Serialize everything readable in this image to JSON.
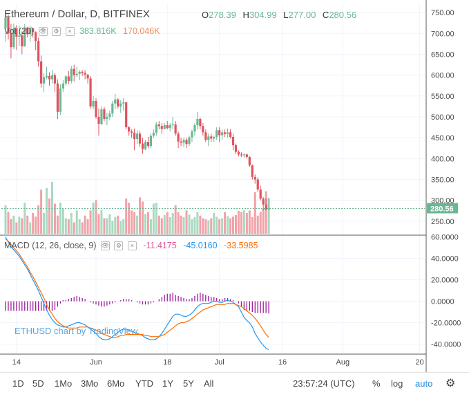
{
  "header": {
    "symbol_title": "Ethereum / Dollar, D, BITFINEX",
    "ohlc": {
      "o_label": "O",
      "o_value": "278.39",
      "h_label": "H",
      "h_value": "304.99",
      "l_label": "L",
      "l_value": "277.00",
      "c_label": "C",
      "c_value": "280.56"
    }
  },
  "volume_legend": {
    "label": "Vol (20)",
    "value1": "383.816K",
    "value2": "170.046K"
  },
  "macd_legend": {
    "label": "MACD (12, 26, close, 9)",
    "hist": "-11.4175",
    "macd": "-45.0160",
    "signal": "-33.5985"
  },
  "watermark": "ETHUSD chart by TradingView",
  "last_price": "280.56",
  "bottom_bar": {
    "ranges": [
      "1D",
      "5D",
      "1Mo",
      "3Mo",
      "6Mo",
      "YTD",
      "1Y",
      "5Y",
      "All"
    ],
    "time": "23:57:24 (UTC)",
    "percent": "%",
    "log": "log",
    "auto": "auto"
  },
  "colors": {
    "up": "#6ab793",
    "down": "#e0535d",
    "vol_up": "#a9d9c1",
    "vol_down": "#f1a2a8",
    "macd": "#2196f3",
    "signal": "#ff6d00",
    "hist": "#9b1a9b"
  },
  "chart_data": [
    {
      "type": "candlestick",
      "title": "Ethereum / Dollar, D, BITFINEX",
      "x_tick_labels": [
        "14",
        "Jun",
        "18",
        "Jul",
        "16",
        "Aug",
        "20"
      ],
      "y_tick_labels": [
        "750.00",
        "700.00",
        "650.00",
        "600.00",
        "550.00",
        "500.00",
        "450.00",
        "400.00",
        "350.00",
        "300.00",
        "250.00"
      ],
      "ylim": [
        220,
        770
      ],
      "candles": [
        [
          714,
          756,
          680,
          738
        ],
        [
          738,
          745,
          685,
          700
        ],
        [
          700,
          722,
          640,
          667
        ],
        [
          667,
          724,
          662,
          712
        ],
        [
          712,
          720,
          660,
          692
        ],
        [
          692,
          718,
          670,
          695
        ],
        [
          695,
          705,
          650,
          669
        ],
        [
          669,
          722,
          668,
          714
        ],
        [
          714,
          716,
          690,
          698
        ],
        [
          698,
          718,
          680,
          712
        ],
        [
          712,
          713,
          690,
          703
        ],
        [
          703,
          705,
          660,
          682
        ],
        [
          682,
          690,
          620,
          633
        ],
        [
          633,
          647,
          570,
          580
        ],
        [
          580,
          605,
          560,
          595
        ],
        [
          595,
          620,
          590,
          598
        ],
        [
          598,
          607,
          575,
          590
        ],
        [
          590,
          612,
          580,
          600
        ],
        [
          600,
          605,
          560,
          580
        ],
        [
          580,
          590,
          495,
          512
        ],
        [
          512,
          578,
          505,
          568
        ],
        [
          568,
          588,
          560,
          580
        ],
        [
          580,
          600,
          575,
          597
        ],
        [
          597,
          610,
          578,
          586
        ],
        [
          586,
          622,
          580,
          615
        ],
        [
          615,
          625,
          585,
          600
        ],
        [
          600,
          620,
          595,
          603
        ],
        [
          603,
          612,
          588,
          608
        ],
        [
          608,
          612,
          598,
          605
        ],
        [
          605,
          612,
          590,
          601
        ],
        [
          601,
          603,
          580,
          592
        ],
        [
          592,
          598,
          520,
          525
        ],
        [
          525,
          550,
          518,
          538
        ],
        [
          538,
          545,
          495,
          500
        ],
        [
          500,
          520,
          455,
          483
        ],
        [
          483,
          525,
          480,
          518
        ],
        [
          518,
          524,
          490,
          495
        ],
        [
          495,
          510,
          480,
          500
        ],
        [
          500,
          515,
          492,
          508
        ],
        [
          508,
          538,
          500,
          532
        ],
        [
          532,
          555,
          518,
          542
        ],
        [
          542,
          545,
          520,
          525
        ],
        [
          525,
          540,
          510,
          532
        ],
        [
          532,
          545,
          515,
          535
        ],
        [
          535,
          535,
          470,
          475
        ],
        [
          475,
          478,
          455,
          465
        ],
        [
          465,
          470,
          450,
          462
        ],
        [
          462,
          472,
          420,
          447
        ],
        [
          447,
          468,
          435,
          460
        ],
        [
          460,
          466,
          428,
          436
        ],
        [
          436,
          450,
          412,
          423
        ],
        [
          423,
          445,
          420,
          440
        ],
        [
          440,
          452,
          425,
          430
        ],
        [
          430,
          460,
          425,
          455
        ],
        [
          455,
          470,
          450,
          462
        ],
        [
          462,
          488,
          455,
          482
        ],
        [
          482,
          490,
          470,
          478
        ],
        [
          478,
          485,
          460,
          471
        ],
        [
          471,
          485,
          470,
          480
        ],
        [
          480,
          490,
          470,
          473
        ],
        [
          473,
          485,
          465,
          480
        ],
        [
          480,
          500,
          470,
          482
        ],
        [
          482,
          490,
          455,
          460
        ],
        [
          460,
          465,
          425,
          441
        ],
        [
          441,
          450,
          430,
          438
        ],
        [
          438,
          450,
          428,
          445
        ],
        [
          445,
          450,
          425,
          435
        ],
        [
          435,
          455,
          430,
          451
        ],
        [
          451,
          470,
          440,
          465
        ],
        [
          465,
          485,
          455,
          480
        ],
        [
          480,
          512,
          470,
          495
        ],
        [
          495,
          498,
          470,
          478
        ],
        [
          478,
          485,
          455,
          463
        ],
        [
          463,
          470,
          440,
          445
        ],
        [
          445,
          460,
          430,
          453
        ],
        [
          453,
          460,
          440,
          448
        ],
        [
          448,
          455,
          440,
          452
        ],
        [
          452,
          475,
          445,
          468
        ],
        [
          468,
          475,
          440,
          456
        ],
        [
          456,
          470,
          445,
          463
        ],
        [
          463,
          470,
          452,
          459
        ],
        [
          459,
          472,
          450,
          463
        ],
        [
          463,
          470,
          448,
          452
        ],
        [
          452,
          460,
          420,
          432
        ],
        [
          432,
          436,
          410,
          416
        ],
        [
          416,
          420,
          405,
          410
        ],
        [
          410,
          415,
          404,
          408
        ],
        [
          408,
          413,
          402,
          410
        ],
        [
          410,
          412,
          400,
          404
        ],
        [
          404,
          406,
          380,
          384
        ],
        [
          384,
          386,
          350,
          356
        ],
        [
          356,
          362,
          340,
          350
        ],
        [
          350,
          355,
          320,
          326
        ],
        [
          326,
          335,
          300,
          304
        ],
        [
          304,
          308,
          276,
          290
        ],
        [
          290,
          305,
          277,
          278
        ],
        [
          278.39,
          304.99,
          277.0,
          280.56
        ]
      ],
      "volumes": [
        55,
        42,
        28,
        35,
        22,
        33,
        30,
        60,
        35,
        22,
        40,
        33,
        55,
        85,
        40,
        88,
        68,
        100,
        58,
        35,
        60,
        48,
        30,
        28,
        40,
        22,
        45,
        28,
        22,
        35,
        28,
        45,
        60,
        65,
        38,
        46,
        30,
        30,
        38,
        25,
        32,
        35,
        25,
        28,
        68,
        60,
        45,
        42,
        35,
        70,
        62,
        38,
        42,
        28,
        58,
        60,
        35,
        30,
        36,
        42,
        32,
        40,
        55,
        42,
        35,
        32,
        45,
        37,
        28,
        32,
        42,
        35,
        30,
        28,
        26,
        30,
        40,
        33,
        28,
        30,
        42,
        34,
        30,
        33,
        36,
        44,
        42,
        45,
        40,
        45,
        32,
        80,
        35,
        42,
        48,
        82,
        69
      ],
      "volume_ylim": [
        0,
        120
      ],
      "last_price_label": "280.56"
    },
    {
      "type": "macd",
      "title": "MACD (12, 26, close, 9)",
      "y_tick_labels": [
        "60.0000",
        "40.0000",
        "20.0000",
        "0.0000",
        "-20.0000",
        "-40.0000"
      ],
      "ylim": [
        -48,
        61
      ],
      "macd": [
        60,
        55,
        51,
        48,
        45,
        42,
        38,
        34,
        30,
        25,
        20,
        15,
        10,
        4,
        -2,
        -8,
        -13,
        -17,
        -20,
        -22,
        -23,
        -24,
        -24,
        -23,
        -22,
        -21,
        -20,
        -20,
        -21,
        -22,
        -24,
        -26,
        -28,
        -30,
        -33,
        -35,
        -36,
        -36,
        -35,
        -33,
        -31,
        -29,
        -27,
        -26,
        -26,
        -27,
        -28,
        -29,
        -30,
        -31,
        -32,
        -34,
        -35,
        -36,
        -36,
        -35,
        -33,
        -30,
        -26,
        -22,
        -18,
        -14,
        -12,
        -12,
        -13,
        -14,
        -14,
        -13,
        -11,
        -8,
        -5,
        -3,
        -2,
        -2,
        -2,
        -1,
        0,
        0,
        -1,
        -1,
        0,
        1,
        0,
        -1,
        -3,
        -5,
        -10,
        -15,
        -18,
        -20,
        -24,
        -30,
        -34,
        -38,
        -41,
        -44,
        -45.016
      ],
      "signal": [
        58,
        56,
        53,
        50,
        47,
        44,
        40,
        36,
        32,
        27,
        23,
        18,
        13,
        8,
        3,
        -3,
        -8,
        -12,
        -16,
        -19,
        -21,
        -23,
        -24,
        -25,
        -25,
        -25,
        -25,
        -24,
        -24,
        -24,
        -24,
        -25,
        -26,
        -27,
        -28,
        -30,
        -31,
        -32,
        -33,
        -34,
        -34,
        -33,
        -32,
        -32,
        -31,
        -31,
        -31,
        -31,
        -31,
        -31,
        -31,
        -32,
        -32,
        -33,
        -33,
        -33,
        -33,
        -32,
        -31,
        -29,
        -27,
        -25,
        -23,
        -21,
        -20,
        -20,
        -19,
        -18,
        -16,
        -14,
        -12,
        -10,
        -8,
        -7,
        -6,
        -5,
        -4,
        -3,
        -3,
        -3,
        -3,
        -2,
        -2,
        -2,
        -3,
        -4,
        -5,
        -7,
        -9,
        -11,
        -13,
        -16,
        -19,
        -23,
        -27,
        -31,
        -33.5985
      ],
      "histogram": [
        -9,
        -9,
        -9,
        -9,
        -9,
        -9,
        -9,
        -9,
        -9,
        -9,
        -9,
        -9,
        -9,
        -9,
        -9,
        -9,
        -9,
        -9,
        -8,
        -5,
        -2,
        1,
        1,
        2,
        3,
        4,
        5,
        4,
        3,
        2,
        0,
        -1,
        -2,
        -3,
        -4,
        -5,
        -5,
        -4,
        -3,
        -2,
        -1,
        0,
        1,
        2,
        2,
        2,
        1,
        0,
        -1,
        -2,
        -3,
        -3,
        -3,
        -2,
        -1,
        0,
        2,
        4,
        6,
        7,
        7,
        8,
        6,
        5,
        4,
        3,
        2,
        2,
        3,
        5,
        7,
        8,
        7,
        6,
        5,
        4,
        4,
        3,
        2,
        2,
        3,
        3,
        2,
        1,
        0,
        -2,
        -5,
        -8,
        -9,
        -9,
        -10,
        -11,
        -11,
        -11,
        -11,
        -11,
        -11.4175
      ]
    }
  ]
}
